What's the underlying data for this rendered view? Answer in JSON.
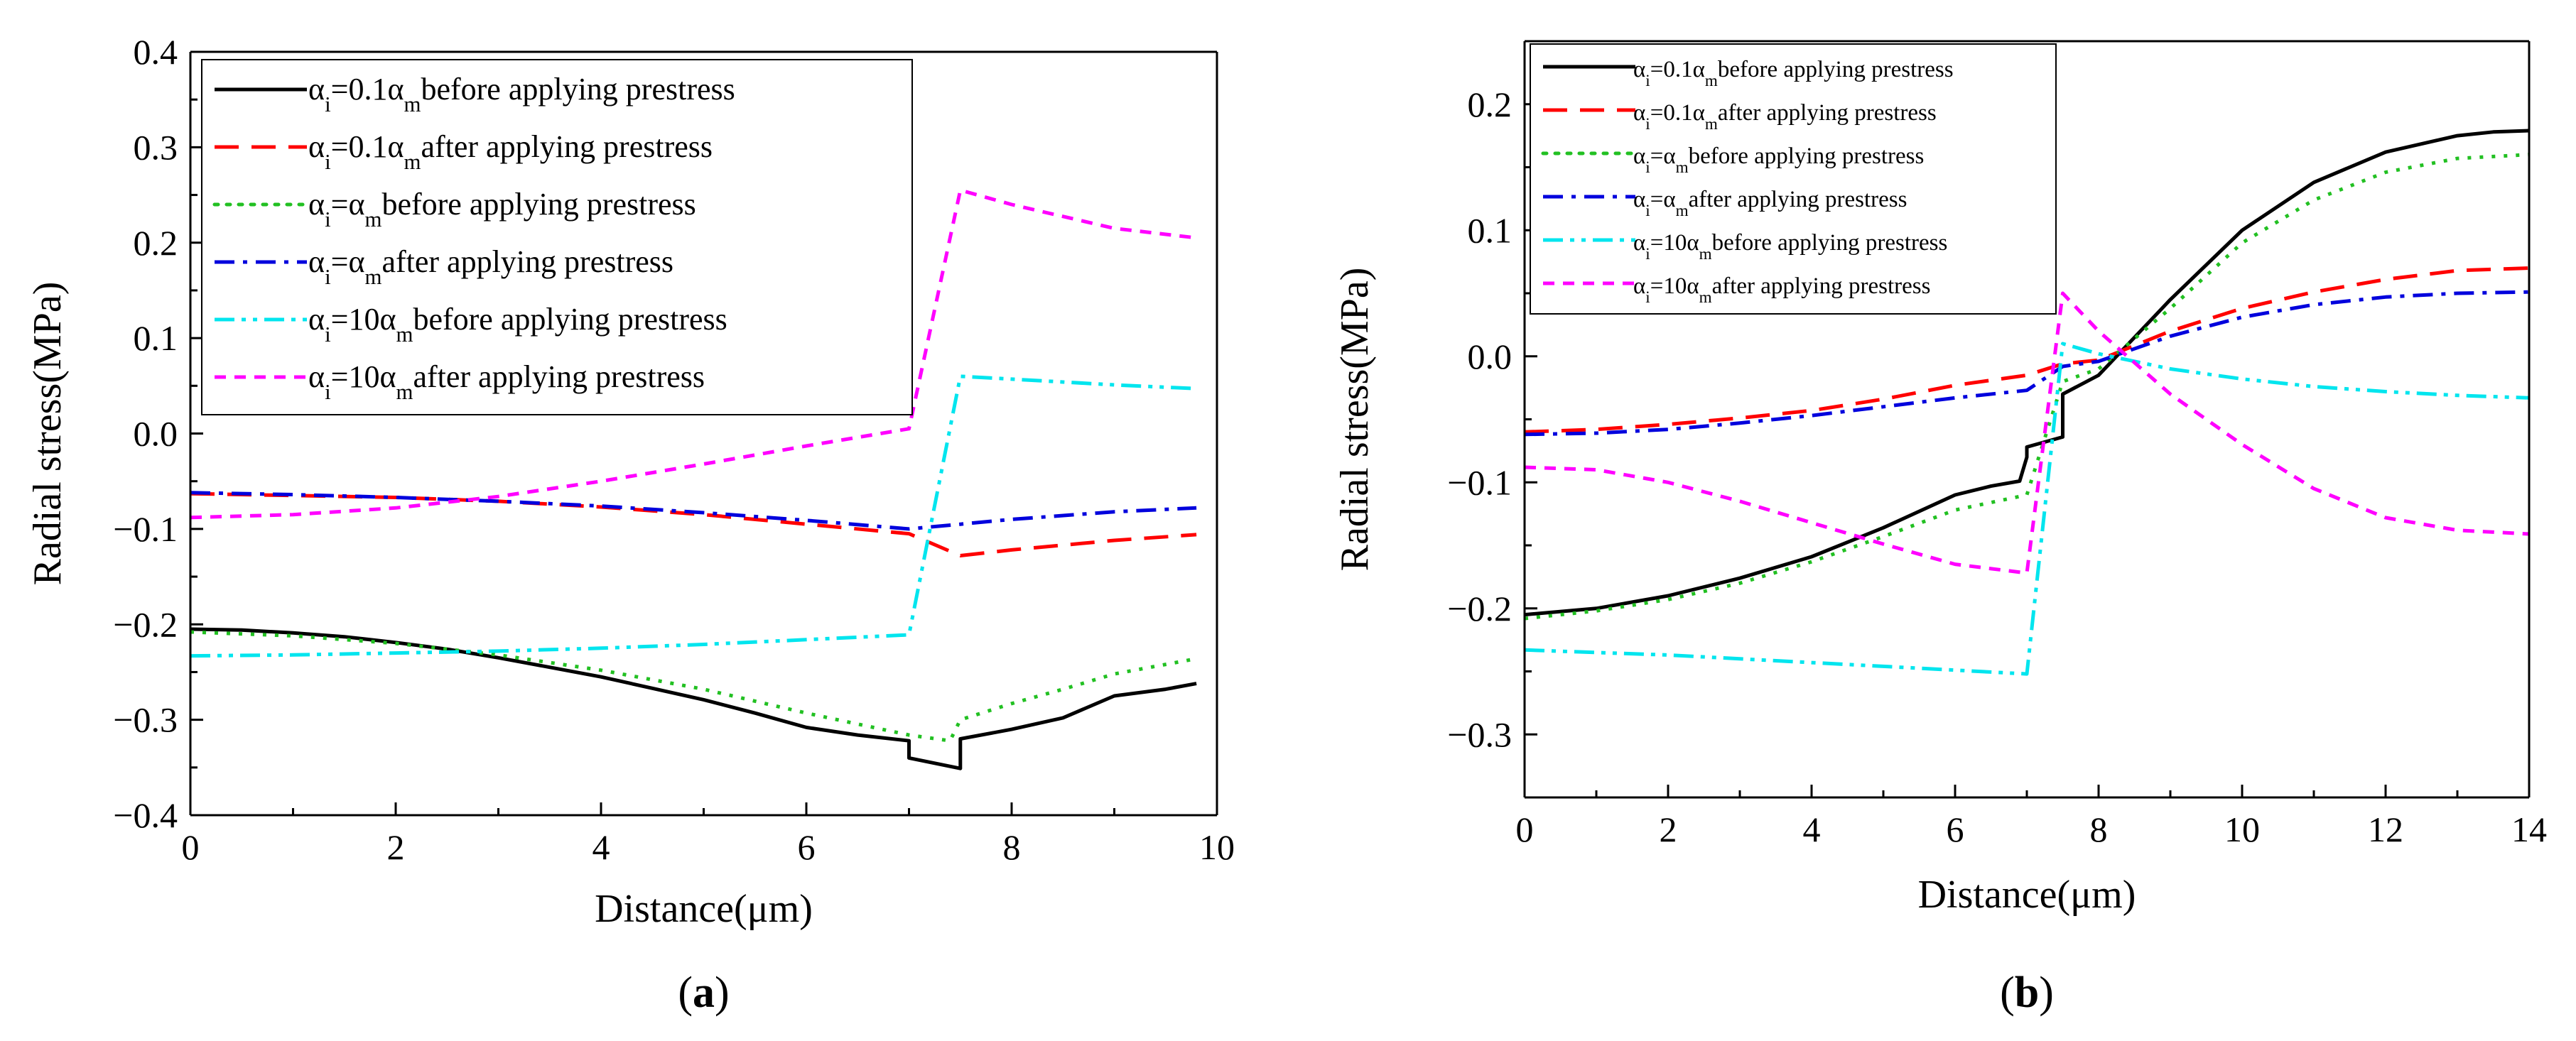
{
  "chart_data": [
    {
      "id": "a",
      "type": "line",
      "panel_label": "a",
      "xlabel": "Distance(μm)",
      "ylabel": "Radial stress(MPa)",
      "xlim": [
        0,
        10
      ],
      "ylim": [
        -0.4,
        0.4
      ],
      "xticks": [
        0,
        2,
        4,
        6,
        8,
        10
      ],
      "xtick_labels": [
        "0",
        "2",
        "4",
        "6",
        "8",
        "10"
      ],
      "yticks": [
        -0.4,
        -0.3,
        -0.2,
        -0.1,
        0.0,
        0.1,
        0.2,
        0.3,
        0.4
      ],
      "ytick_labels": [
        "−0.4",
        "−0.3",
        "−0.2",
        "−0.1",
        "0.0",
        "0.1",
        "0.2",
        "0.3",
        "0.4"
      ],
      "legend_position": "top-left",
      "series": [
        {
          "name": "αi=0.1αm before applying prestress",
          "legend": {
            "pre": "α",
            "sub1": "i",
            "mid": "=0.1α",
            "sub2": "m",
            "post": "before applying prestress"
          },
          "color": "#000000",
          "dash": "solid",
          "x": [
            0,
            0.5,
            1,
            1.5,
            2,
            2.5,
            3,
            3.5,
            4,
            4.5,
            5,
            5.5,
            6,
            6.5,
            7,
            7.0,
            7.5,
            7.5,
            8,
            8.5,
            9,
            9.5,
            9.8
          ],
          "y": [
            -0.205,
            -0.206,
            -0.209,
            -0.213,
            -0.219,
            -0.226,
            -0.235,
            -0.245,
            -0.255,
            -0.267,
            -0.279,
            -0.293,
            -0.308,
            -0.316,
            -0.322,
            -0.34,
            -0.351,
            -0.32,
            -0.31,
            -0.298,
            -0.275,
            -0.268,
            -0.262
          ]
        },
        {
          "name": "αi=0.1αm after applying prestress",
          "legend": {
            "pre": "α",
            "sub1": "i",
            "mid": "=0.1α",
            "sub2": "m",
            "post": "after applying prestress"
          },
          "color": "#ff0000",
          "dash": "long-dash",
          "x": [
            0,
            1,
            2,
            3,
            4,
            5,
            6,
            7,
            7.5,
            8,
            9,
            9.8
          ],
          "y": [
            -0.063,
            -0.065,
            -0.067,
            -0.071,
            -0.077,
            -0.085,
            -0.095,
            -0.105,
            -0.128,
            -0.122,
            -0.112,
            -0.106
          ]
        },
        {
          "name": "αi=αm before applying prestress",
          "legend": {
            "pre": "α",
            "sub1": "i",
            "mid": "=α",
            "sub2": "m",
            "post": "before applying prestress"
          },
          "color": "#22c022",
          "dash": "dot",
          "x": [
            0,
            1,
            2,
            3,
            4,
            5,
            6,
            7,
            7.4,
            7.5,
            8,
            8.5,
            9,
            9.8
          ],
          "y": [
            -0.208,
            -0.212,
            -0.22,
            -0.232,
            -0.248,
            -0.268,
            -0.293,
            -0.316,
            -0.322,
            -0.3,
            -0.283,
            -0.268,
            -0.252,
            -0.236
          ]
        },
        {
          "name": "αi=αm after applying prestress",
          "legend": {
            "pre": "α",
            "sub1": "i",
            "mid": "=α",
            "sub2": "m",
            "post": "after applying prestress"
          },
          "color": "#0000dd",
          "dash": "dash-dot",
          "x": [
            0,
            1,
            2,
            3,
            4,
            5,
            6,
            7,
            7.5,
            8,
            9,
            9.8
          ],
          "y": [
            -0.062,
            -0.064,
            -0.067,
            -0.071,
            -0.076,
            -0.083,
            -0.091,
            -0.1,
            -0.095,
            -0.09,
            -0.082,
            -0.078
          ]
        },
        {
          "name": "αi=10αm before applying prestress",
          "legend": {
            "pre": "α",
            "sub1": "i",
            "mid": "=10α",
            "sub2": "m",
            "post": "before applying prestress"
          },
          "color": "#00e5ee",
          "dash": "dash-dot-dot",
          "x": [
            0,
            1,
            2,
            3,
            4,
            5,
            6,
            7,
            7.5,
            8,
            9,
            9.8
          ],
          "y": [
            -0.233,
            -0.232,
            -0.23,
            -0.228,
            -0.225,
            -0.221,
            -0.216,
            -0.211,
            0.06,
            0.057,
            0.051,
            0.047
          ]
        },
        {
          "name": "αi=10αm after applying prestress",
          "legend": {
            "pre": "α",
            "sub1": "i",
            "mid": "=10α",
            "sub2": "m",
            "post": "after applying prestress"
          },
          "color": "#ff00ff",
          "dash": "short-dash",
          "x": [
            0,
            1,
            2,
            3,
            4,
            5,
            6,
            7,
            7.5,
            8,
            9,
            9.8
          ],
          "y": [
            -0.088,
            -0.085,
            -0.078,
            -0.066,
            -0.05,
            -0.032,
            -0.013,
            0.005,
            0.255,
            0.24,
            0.215,
            0.205
          ]
        }
      ]
    },
    {
      "id": "b",
      "type": "line",
      "panel_label": "b",
      "xlabel": "Distance(μm)",
      "ylabel": "Radial stress(MPa)",
      "xlim": [
        0,
        14
      ],
      "ylim": [
        -0.35,
        0.25
      ],
      "xticks": [
        0,
        2,
        4,
        6,
        8,
        10,
        12,
        14
      ],
      "xtick_labels": [
        "0",
        "2",
        "4",
        "6",
        "8",
        "10",
        "12",
        "14"
      ],
      "yticks": [
        -0.3,
        -0.2,
        -0.1,
        0.0,
        0.1,
        0.2
      ],
      "ytick_labels": [
        "−0.3",
        "−0.2",
        "−0.1",
        "0.0",
        "0.1",
        "0.2"
      ],
      "legend_position": "top-left",
      "series": [
        {
          "name": "αi=0.1αm before applying prestress",
          "legend": {
            "pre": "α",
            "sub1": "i",
            "mid": "=0.1α",
            "sub2": "m",
            "post": "before applying prestress"
          },
          "color": "#000000",
          "dash": "solid",
          "x": [
            0,
            1,
            2,
            3,
            4,
            5,
            6,
            6.5,
            6.9,
            7.0,
            7.0,
            7.5,
            7.5,
            8,
            9,
            10,
            11,
            12,
            13,
            13.5,
            14
          ],
          "y": [
            -0.205,
            -0.2,
            -0.19,
            -0.176,
            -0.159,
            -0.136,
            -0.11,
            -0.103,
            -0.099,
            -0.08,
            -0.072,
            -0.064,
            -0.03,
            -0.015,
            0.045,
            0.1,
            0.138,
            0.162,
            0.175,
            0.178,
            0.179
          ]
        },
        {
          "name": "αi=0.1αm after applying prestress",
          "legend": {
            "pre": "α",
            "sub1": "i",
            "mid": "=0.1α",
            "sub2": "m",
            "post": "after applying prestress"
          },
          "color": "#ff0000",
          "dash": "long-dash",
          "x": [
            0,
            1,
            2,
            3,
            4,
            5,
            6,
            7,
            7.5,
            8,
            9,
            10,
            11,
            12,
            13,
            14
          ],
          "y": [
            -0.06,
            -0.058,
            -0.054,
            -0.049,
            -0.043,
            -0.034,
            -0.023,
            -0.015,
            -0.006,
            -0.003,
            0.02,
            0.038,
            0.051,
            0.061,
            0.068,
            0.07
          ]
        },
        {
          "name": "αi=αm before applying prestress",
          "legend": {
            "pre": "α",
            "sub1": "i",
            "mid": "=α",
            "sub2": "m",
            "post": "before applying prestress"
          },
          "color": "#22c022",
          "dash": "dot",
          "x": [
            0,
            1,
            2,
            3,
            4,
            5,
            6,
            7,
            7.5,
            8,
            9,
            10,
            11,
            12,
            13,
            14
          ],
          "y": [
            -0.208,
            -0.202,
            -0.193,
            -0.18,
            -0.163,
            -0.143,
            -0.122,
            -0.11,
            -0.02,
            -0.01,
            0.038,
            0.09,
            0.124,
            0.146,
            0.157,
            0.16
          ]
        },
        {
          "name": "αi=αm after applying prestress",
          "legend": {
            "pre": "α",
            "sub1": "i",
            "mid": "=α",
            "sub2": "m",
            "post": "after applying prestress"
          },
          "color": "#0000dd",
          "dash": "dash-dot",
          "x": [
            0,
            1,
            2,
            3,
            4,
            5,
            6,
            7,
            7.5,
            8,
            9,
            10,
            11,
            12,
            13,
            14
          ],
          "y": [
            -0.062,
            -0.061,
            -0.058,
            -0.053,
            -0.047,
            -0.04,
            -0.033,
            -0.027,
            -0.008,
            -0.004,
            0.016,
            0.031,
            0.041,
            0.047,
            0.05,
            0.051
          ]
        },
        {
          "name": "αi=10αm before applying prestress",
          "legend": {
            "pre": "α",
            "sub1": "i",
            "mid": "=10α",
            "sub2": "m",
            "post": "before applying prestress"
          },
          "color": "#00e5ee",
          "dash": "dash-dot-dot",
          "x": [
            0,
            1,
            2,
            3,
            4,
            5,
            6,
            7,
            7.5,
            8,
            9,
            10,
            11,
            12,
            13,
            14
          ],
          "y": [
            -0.233,
            -0.235,
            -0.237,
            -0.24,
            -0.243,
            -0.246,
            -0.249,
            -0.252,
            0.01,
            0.002,
            -0.01,
            -0.018,
            -0.024,
            -0.028,
            -0.031,
            -0.033
          ]
        },
        {
          "name": "αi=10αm after applying prestress",
          "legend": {
            "pre": "α",
            "sub1": "i",
            "mid": "=10α",
            "sub2": "m",
            "post": "after applying prestress"
          },
          "color": "#ff00ff",
          "dash": "short-dash",
          "x": [
            0,
            1,
            2,
            3,
            4,
            5,
            6,
            7,
            7.5,
            8,
            9,
            10,
            11,
            12,
            13,
            14
          ],
          "y": [
            -0.088,
            -0.09,
            -0.1,
            -0.115,
            -0.132,
            -0.149,
            -0.165,
            -0.172,
            0.05,
            0.02,
            -0.03,
            -0.07,
            -0.105,
            -0.128,
            -0.138,
            -0.141
          ]
        }
      ]
    }
  ]
}
